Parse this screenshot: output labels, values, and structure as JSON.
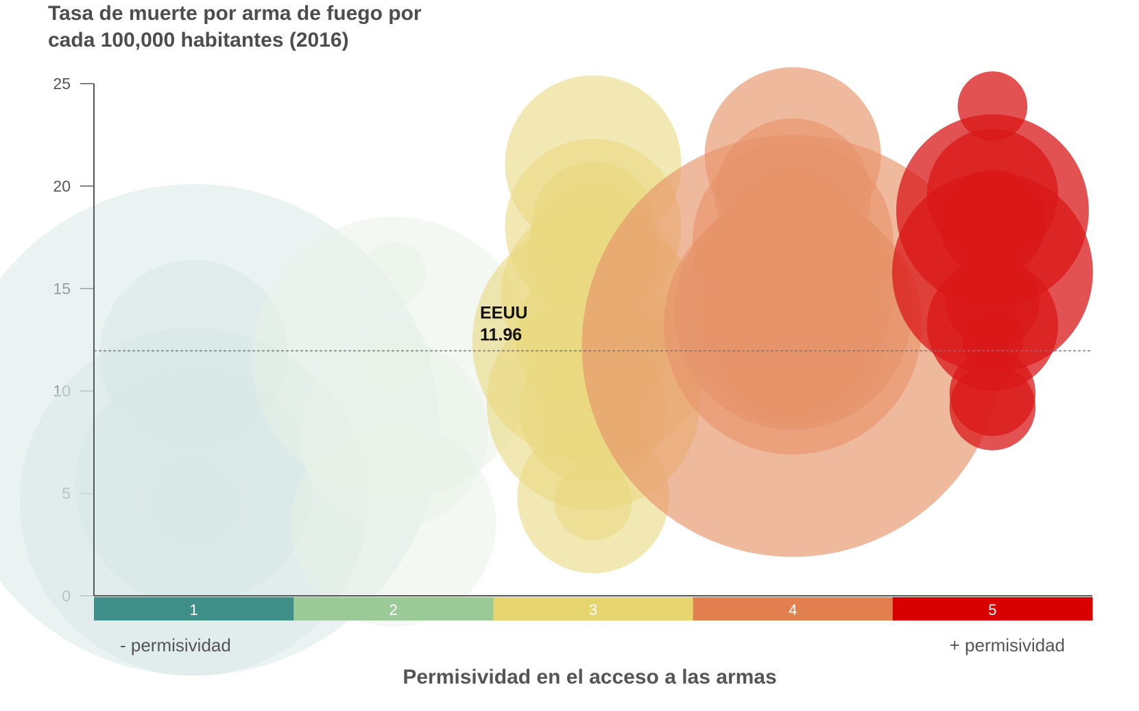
{
  "chart_data": {
    "type": "scatter",
    "subtype": "bubble",
    "title_lines": [
      "Tasa de muerte por arma de fuego por",
      "cada 100,000 habitantes (2016)"
    ],
    "xlabel": "Permisividad en el acceso a las armas",
    "xlabel_left": "- permisividad",
    "xlabel_right": "+ permisividad",
    "ylabel": "",
    "ylim": [
      0,
      25
    ],
    "yticks": [
      0,
      5,
      10,
      15,
      20,
      25
    ],
    "categories": [
      "1",
      "2",
      "3",
      "4",
      "5"
    ],
    "category_colors": [
      "#3e8f87",
      "#9acb97",
      "#e6d46e",
      "#e17f4f",
      "#d80000"
    ],
    "bubble_colors": [
      "#d6e8e5",
      "#e8f2e7",
      "#e9d980",
      "#e6936a",
      "#d91818"
    ],
    "bubble_opacity": [
      0.5,
      0.5,
      0.6,
      0.65,
      0.75
    ],
    "reference_line": {
      "label": "EEUU",
      "value": 11.96,
      "value_label": "11.96"
    },
    "series": [
      {
        "name": "1",
        "points": [
          {
            "y": 8.1,
            "size": 12.0
          },
          {
            "y": 4.6,
            "size": 8.5
          },
          {
            "y": 5.4,
            "size": 5.8
          },
          {
            "y": 11.8,
            "size": 4.6
          },
          {
            "y": 4.6,
            "size": 2.2
          }
        ]
      },
      {
        "name": "2",
        "points": [
          {
            "y": 11.6,
            "size": 6.9
          },
          {
            "y": 7.9,
            "size": 4.6
          },
          {
            "y": 3.5,
            "size": 5.0
          },
          {
            "y": 15.7,
            "size": 1.6
          },
          {
            "y": 11.6,
            "size": 1.8
          }
        ]
      },
      {
        "name": "3",
        "points": [
          {
            "y": 21.1,
            "size": 4.3
          },
          {
            "y": 18.0,
            "size": 4.3
          },
          {
            "y": 18.2,
            "size": 3.0
          },
          {
            "y": 16.9,
            "size": 3.2
          },
          {
            "y": 14.7,
            "size": 4.5
          },
          {
            "y": 12.4,
            "size": 5.9
          },
          {
            "y": 12.6,
            "size": 3.8
          },
          {
            "y": 9.4,
            "size": 5.2
          },
          {
            "y": 9.1,
            "size": 3.6
          },
          {
            "y": 9.0,
            "size": 2.6
          },
          {
            "y": 4.8,
            "size": 3.7
          },
          {
            "y": 4.6,
            "size": 1.9
          }
        ]
      },
      {
        "name": "4",
        "points": [
          {
            "y": 21.5,
            "size": 4.3
          },
          {
            "y": 19.5,
            "size": 3.8
          },
          {
            "y": 18.5,
            "size": 2.6
          },
          {
            "y": 18.2,
            "size": 2.2
          },
          {
            "y": 17.3,
            "size": 4.9
          },
          {
            "y": 17.4,
            "size": 3.4
          },
          {
            "y": 15.0,
            "size": 5.0
          },
          {
            "y": 13.9,
            "size": 5.8
          },
          {
            "y": 13.2,
            "size": 6.3
          },
          {
            "y": 12.2,
            "size": 10.3
          },
          {
            "y": 12.9,
            "size": 4.6
          },
          {
            "y": 12.4,
            "size": 3.7
          },
          {
            "y": 12.1,
            "size": 3.3
          },
          {
            "y": 12.6,
            "size": 2.0
          },
          {
            "y": 11.9,
            "size": 1.6
          }
        ]
      },
      {
        "name": "5",
        "points": [
          {
            "y": 23.9,
            "size": 1.7
          },
          {
            "y": 19.6,
            "size": 3.2
          },
          {
            "y": 18.8,
            "size": 4.7
          },
          {
            "y": 18.2,
            "size": 2.6
          },
          {
            "y": 17.3,
            "size": 1.4
          },
          {
            "y": 15.8,
            "size": 4.9
          },
          {
            "y": 14.4,
            "size": 2.3
          },
          {
            "y": 13.2,
            "size": 3.2
          },
          {
            "y": 12.5,
            "size": 1.5
          },
          {
            "y": 9.9,
            "size": 2.1
          },
          {
            "y": 9.2,
            "size": 2.1
          }
        ]
      }
    ]
  }
}
